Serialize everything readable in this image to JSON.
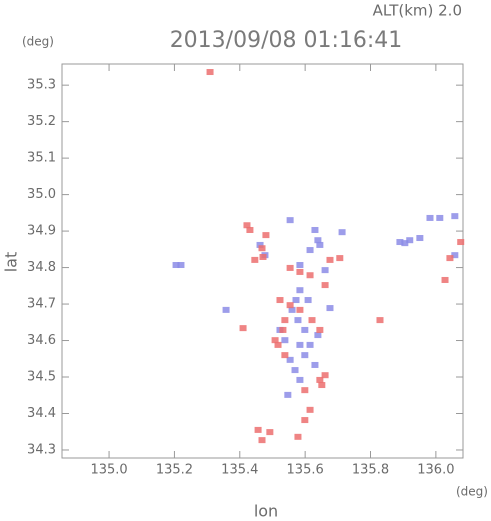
{
  "chart_data": {
    "type": "scatter",
    "title": "2013/09/08 01:16:41",
    "subtitle": "ALT(km) 2.0",
    "y_unit": "(deg)",
    "x_unit": "(deg)",
    "xlabel": "lon",
    "ylabel": "lat",
    "xlim": [
      134.856,
      136.083
    ],
    "ylim": [
      34.278,
      35.358
    ],
    "xticks": [
      {
        "value": 135,
        "label": "135.0"
      },
      135.2,
      135.4,
      135.6,
      135.8,
      {
        "value": 136,
        "label": "136.0"
      }
    ],
    "yticks": [
      34.3,
      34.4,
      34.5,
      34.6,
      34.7,
      34.8,
      34.9,
      {
        "value": 35,
        "label": "35.0"
      },
      35.1,
      35.2,
      35.3
    ],
    "series": [
      {
        "color": "#8c8ce6",
        "x": [
          135.205,
          135.22,
          135.358,
          135.554,
          135.63,
          135.639,
          135.584,
          135.615,
          135.661,
          135.578,
          135.599,
          135.584,
          135.554,
          135.569,
          135.584,
          135.599,
          135.538,
          135.523,
          135.56,
          135.609,
          135.615,
          135.639,
          135.63,
          135.645,
          135.92,
          135.951,
          135.89,
          135.982,
          136.012,
          136.058,
          136.058,
          135.905,
          135.462,
          135.477,
          135.676,
          135.713,
          135.584,
          135.572,
          135.547
        ],
        "y": [
          34.807,
          34.807,
          34.684,
          34.93,
          34.903,
          34.875,
          34.807,
          34.848,
          34.793,
          34.656,
          34.629,
          34.588,
          34.547,
          34.519,
          34.492,
          34.56,
          34.601,
          34.629,
          34.684,
          34.711,
          34.588,
          34.615,
          34.533,
          34.862,
          34.875,
          34.881,
          34.87,
          34.936,
          34.936,
          34.941,
          34.834,
          34.867,
          34.862,
          34.834,
          34.689,
          34.897,
          34.738,
          34.711,
          34.451
        ]
      },
      {
        "color": "#ec6e6e",
        "x": [
          135.422,
          135.431,
          135.471,
          135.554,
          135.584,
          135.615,
          135.661,
          135.676,
          135.706,
          135.523,
          135.554,
          135.538,
          135.508,
          135.517,
          135.532,
          135.584,
          135.621,
          135.645,
          135.645,
          135.651,
          135.615,
          135.599,
          135.456,
          135.468,
          135.492,
          135.578,
          136.076,
          136.043,
          136.028,
          135.309,
          135.829,
          135.446,
          135.468,
          135.41,
          135.538,
          135.599,
          135.661,
          135.48
        ],
        "y": [
          34.916,
          34.903,
          34.829,
          34.799,
          34.788,
          34.779,
          34.752,
          34.821,
          34.826,
          34.711,
          34.697,
          34.656,
          34.601,
          34.588,
          34.629,
          34.684,
          34.656,
          34.629,
          34.492,
          34.478,
          34.41,
          34.382,
          34.355,
          34.327,
          34.349,
          34.336,
          34.87,
          34.826,
          34.766,
          35.336,
          34.656,
          34.821,
          34.853,
          34.634,
          34.56,
          34.464,
          34.505,
          34.889
        ]
      }
    ]
  }
}
